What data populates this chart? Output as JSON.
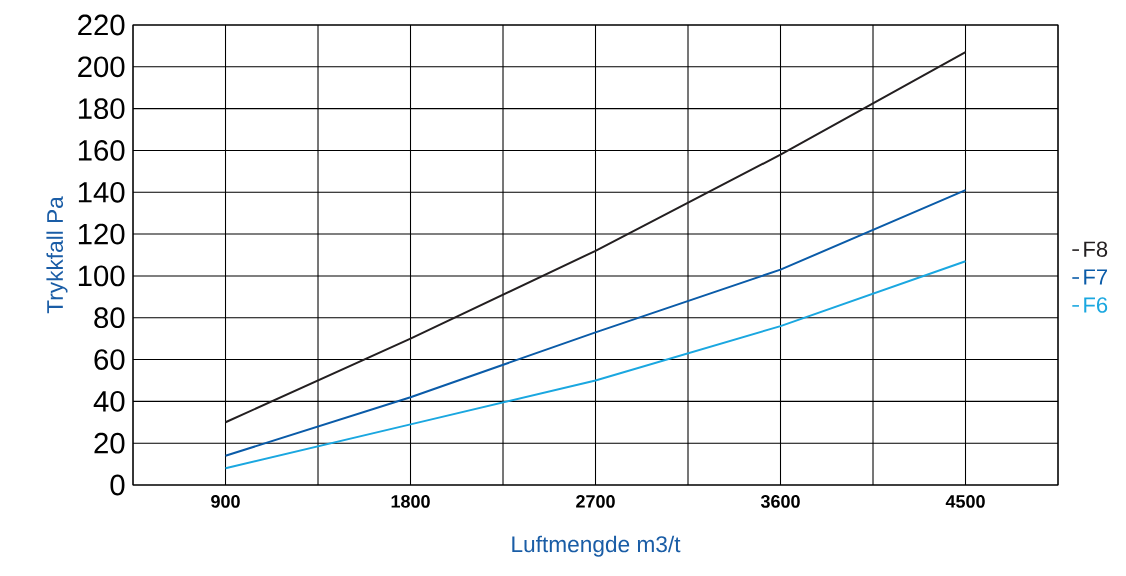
{
  "chart_data": {
    "type": "line",
    "xlabel": "Luftmengde m3/t",
    "ylabel": "Trykkfall Pa",
    "x": [
      900,
      1800,
      2700,
      3600,
      4500
    ],
    "series": [
      {
        "name": "F8",
        "color": "#231f20",
        "values": [
          30,
          70,
          112,
          158,
          207
        ]
      },
      {
        "name": "F7",
        "color": "#0a5ba8",
        "values": [
          14,
          42,
          73,
          103,
          141
        ]
      },
      {
        "name": "F6",
        "color": "#1aa7e0",
        "values": [
          8,
          29,
          50,
          76,
          107
        ]
      }
    ],
    "xlim": [
      450,
      4950
    ],
    "xticks": [
      {
        "value": 450,
        "label": null
      },
      900,
      {
        "value": 1350,
        "label": null
      },
      1800,
      {
        "value": 2250,
        "label": null
      },
      2700,
      {
        "value": 3150,
        "label": null
      },
      3600,
      {
        "value": 4050,
        "label": null
      },
      4500,
      {
        "value": 4950,
        "label": null
      }
    ],
    "ylim": [
      0,
      220
    ],
    "yticks": [
      0,
      20,
      40,
      60,
      80,
      100,
      120,
      140,
      160,
      180,
      200,
      220
    ],
    "grid": true,
    "legend": "right"
  }
}
